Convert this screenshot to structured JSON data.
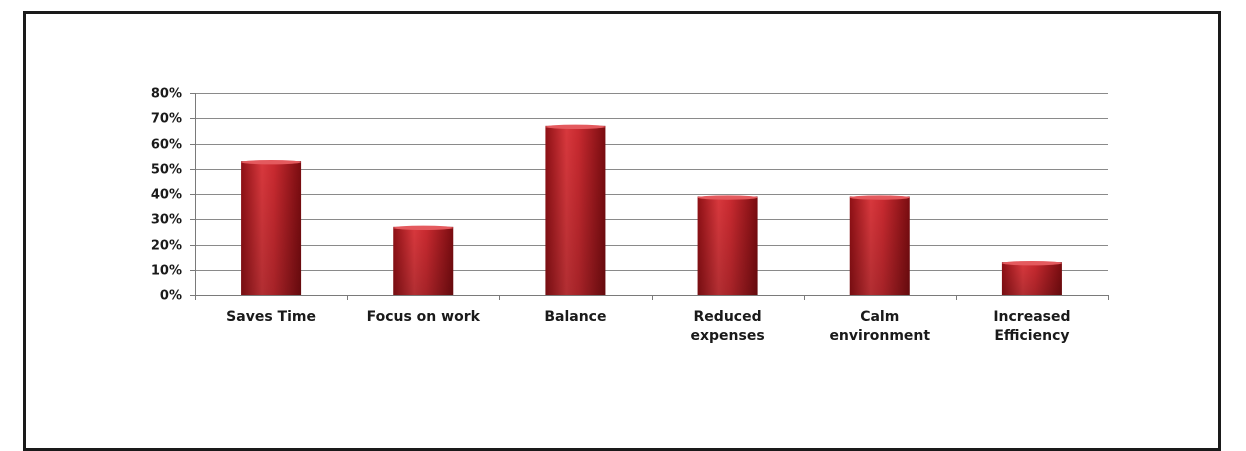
{
  "chart_data": {
    "type": "bar",
    "title": "",
    "xlabel": "",
    "ylabel": "",
    "categories": [
      [
        "Saves Time"
      ],
      [
        "Focus on work"
      ],
      [
        "Balance"
      ],
      [
        "Reduced",
        "expenses"
      ],
      [
        "Calm",
        "environment"
      ],
      [
        "Increased",
        "Efficiency"
      ]
    ],
    "values": [
      53,
      27,
      67,
      39,
      39,
      13
    ],
    "ylim": [
      0,
      80
    ],
    "yticks": [
      0,
      10,
      20,
      30,
      40,
      50,
      60,
      70,
      80
    ],
    "ytick_labels": [
      "0%",
      "10%",
      "20%",
      "30%",
      "40%",
      "50%",
      "60%",
      "70%",
      "80%"
    ],
    "grid": true,
    "legend": "none",
    "bar_color": "#c0272d"
  }
}
